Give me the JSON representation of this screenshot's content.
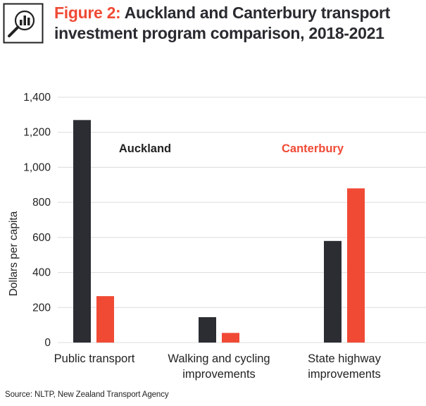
{
  "header": {
    "figure_label": "Figure 2:",
    "title": "Auckland and Canterbury transport investment program comparison, 2018-2021",
    "icon": "magnifier-bar-chart-icon"
  },
  "chart_data": {
    "type": "bar",
    "title": "Auckland and Canterbury transport investment program comparison, 2018-2021",
    "categories": [
      [
        "Public transport"
      ],
      [
        "Walking and cycling",
        "improvements"
      ],
      [
        "State highway",
        "improvements"
      ]
    ],
    "series": [
      {
        "name": "Auckland",
        "values": [
          1270,
          145,
          580
        ],
        "color": "#2b2d33"
      },
      {
        "name": "Canterbury",
        "values": [
          265,
          55,
          880
        ],
        "color": "#f04a35"
      }
    ],
    "xlabel": "",
    "ylabel": "Dollars per capita",
    "ylim": [
      0,
      1400
    ],
    "yticks": [
      0,
      200,
      400,
      600,
      800,
      "1,000",
      "1,200",
      "1,400"
    ],
    "grid": true,
    "legend": "inline-top"
  },
  "source": "Source: NLTP, New Zealand Transport Agency"
}
